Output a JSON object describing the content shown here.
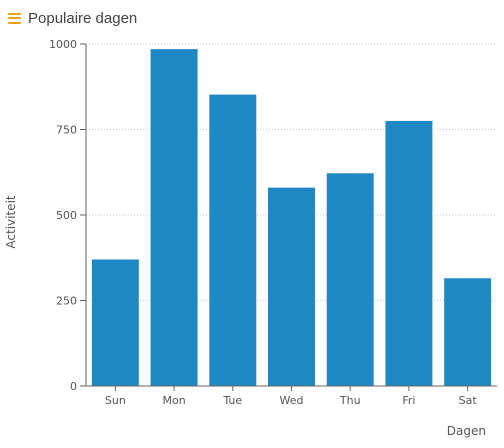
{
  "header": {
    "title": "Populaire dagen",
    "menu_icon": "hamburger-menu-icon",
    "accent_color": "#e8a317"
  },
  "chart_data": {
    "type": "bar",
    "categories": [
      "Sun",
      "Mon",
      "Tue",
      "Wed",
      "Thu",
      "Fri",
      "Sat"
    ],
    "values": [
      370,
      985,
      852,
      580,
      622,
      775,
      315
    ],
    "xlabel": "Dagen",
    "ylabel": "Activiteit",
    "ylim": [
      0,
      1000
    ],
    "yticks": [
      "0",
      "250",
      "500",
      "750",
      "1000"
    ],
    "grid": true,
    "bar_color": "#1f88c4"
  }
}
